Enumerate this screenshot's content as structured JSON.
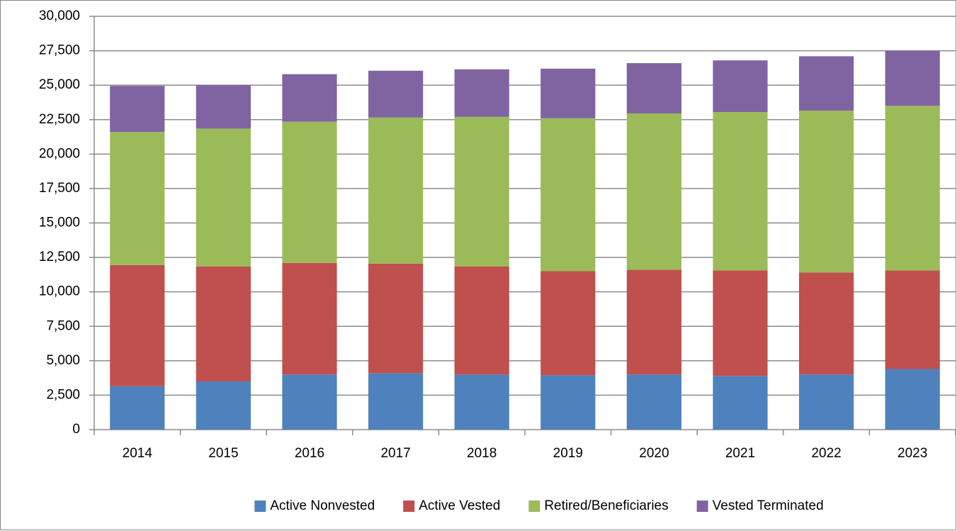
{
  "chart_data": {
    "type": "stacked_bar",
    "categories": [
      "2014",
      "2015",
      "2016",
      "2017",
      "2018",
      "2019",
      "2020",
      "2021",
      "2022",
      "2023"
    ],
    "series": [
      {
        "name": "Active Nonvested",
        "color": "#4f81bd",
        "values": [
          3150,
          3500,
          4000,
          4100,
          4000,
          3950,
          4000,
          3900,
          4000,
          4400
        ]
      },
      {
        "name": "Active Vested",
        "color": "#c0504d",
        "values": [
          8800,
          8350,
          8100,
          7950,
          7850,
          7550,
          7600,
          7650,
          7400,
          7150
        ]
      },
      {
        "name": "Retired/Beneficiaries",
        "color": "#9bbb59",
        "values": [
          9650,
          10000,
          10250,
          10600,
          10850,
          11100,
          11350,
          11500,
          11750,
          11950
        ]
      },
      {
        "name": "Vested Terminated",
        "color": "#8064a2",
        "values": [
          3350,
          3150,
          3450,
          3400,
          3450,
          3600,
          3650,
          3750,
          3950,
          4000
        ]
      }
    ],
    "ylim": [
      0,
      30000
    ],
    "yticks": [
      0,
      {
        "value": 2500,
        "label": "2,500"
      },
      {
        "value": 5000,
        "label": "5,000"
      },
      {
        "value": 7500,
        "label": "7,500"
      },
      {
        "value": 10000,
        "label": "10,000"
      },
      {
        "value": 12500,
        "label": "12,500"
      },
      {
        "value": 15000,
        "label": "15,000"
      },
      {
        "value": 17500,
        "label": "17,500"
      },
      {
        "value": 20000,
        "label": "20,000"
      },
      {
        "value": 22500,
        "label": "22,500"
      },
      {
        "value": 25000,
        "label": "25,000"
      },
      {
        "value": 27500,
        "label": "27,500"
      },
      {
        "value": 30000,
        "label": "30,000"
      }
    ],
    "grid": true,
    "legend": "bottom"
  }
}
